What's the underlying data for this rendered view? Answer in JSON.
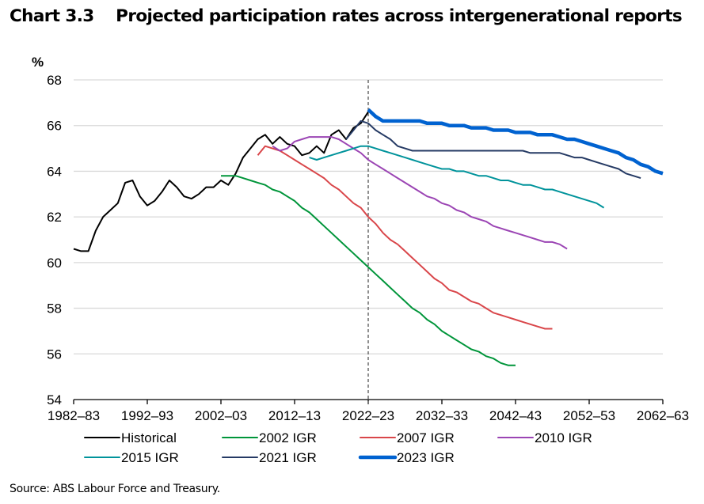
{
  "title": "Chart 3.3    Projected participation rates across intergenerational reports",
  "source": "Source: ABS Labour Force and Treasury.",
  "chart_data": {
    "type": "line",
    "title": "Projected participation rates across intergenerational reports",
    "ylabel": "%",
    "xlabel": "",
    "ylim": [
      54,
      68
    ],
    "yticks": [
      54,
      56,
      58,
      60,
      62,
      64,
      66,
      68
    ],
    "x_start_year": 1982,
    "x_end_year": 2062,
    "xtick_labels": [
      "1982–83",
      "1992–93",
      "2002–03",
      "2012–13",
      "2022–23",
      "2032–33",
      "2042–43",
      "2052–53",
      "2062–63"
    ],
    "xtick_years": [
      1982,
      1992,
      2002,
      2012,
      2022,
      2032,
      2042,
      2052,
      2062
    ],
    "grid": "horizontal",
    "vertical_marker": {
      "year": 2022,
      "style": "dashed"
    },
    "legend_position": "bottom",
    "series": [
      {
        "name": "Historical",
        "color": "#000000",
        "x": [
          1982,
          1983,
          1984,
          1985,
          1986,
          1987,
          1988,
          1989,
          1990,
          1991,
          1992,
          1993,
          1994,
          1995,
          1996,
          1997,
          1998,
          1999,
          2000,
          2001,
          2002,
          2003,
          2004,
          2005,
          2006,
          2007,
          2008,
          2009,
          2010,
          2011,
          2012,
          2013,
          2014,
          2015,
          2016,
          2017,
          2018,
          2019,
          2020,
          2021,
          2022
        ],
        "values": [
          60.6,
          60.5,
          60.5,
          61.4,
          62.0,
          62.3,
          62.6,
          63.5,
          63.6,
          62.9,
          62.5,
          62.7,
          63.1,
          63.6,
          63.3,
          62.9,
          62.8,
          63.0,
          63.3,
          63.3,
          63.6,
          63.4,
          63.9,
          64.6,
          65.0,
          65.4,
          65.6,
          65.2,
          65.5,
          65.2,
          65.1,
          64.7,
          64.8,
          65.1,
          64.8,
          65.6,
          65.8,
          65.4,
          65.9,
          66.1,
          66.6
        ]
      },
      {
        "name": "2002 IGR",
        "color": "#00953A",
        "x": [
          2002,
          2003,
          2004,
          2005,
          2006,
          2007,
          2008,
          2009,
          2010,
          2011,
          2012,
          2013,
          2014,
          2015,
          2016,
          2017,
          2018,
          2019,
          2020,
          2021,
          2022,
          2023,
          2024,
          2025,
          2026,
          2027,
          2028,
          2029,
          2030,
          2031,
          2032,
          2033,
          2034,
          2035,
          2036,
          2037,
          2038,
          2039,
          2040,
          2041,
          2042
        ],
        "values": [
          63.8,
          63.8,
          63.8,
          63.7,
          63.6,
          63.5,
          63.4,
          63.2,
          63.1,
          62.9,
          62.7,
          62.4,
          62.2,
          61.9,
          61.6,
          61.3,
          61.0,
          60.7,
          60.4,
          60.1,
          59.8,
          59.5,
          59.2,
          58.9,
          58.6,
          58.3,
          58.0,
          57.8,
          57.5,
          57.3,
          57.0,
          56.8,
          56.6,
          56.4,
          56.2,
          56.1,
          55.9,
          55.8,
          55.6,
          55.5,
          55.5
        ]
      },
      {
        "name": "2007 IGR",
        "color": "#D9464A",
        "x": [
          2007,
          2008,
          2009,
          2010,
          2011,
          2012,
          2013,
          2014,
          2015,
          2016,
          2017,
          2018,
          2019,
          2020,
          2021,
          2022,
          2023,
          2024,
          2025,
          2026,
          2027,
          2028,
          2029,
          2030,
          2031,
          2032,
          2033,
          2034,
          2035,
          2036,
          2037,
          2038,
          2039,
          2040,
          2041,
          2042,
          2043,
          2044,
          2045,
          2046,
          2047
        ],
        "values": [
          64.7,
          65.1,
          65.0,
          64.9,
          64.7,
          64.5,
          64.3,
          64.1,
          63.9,
          63.7,
          63.4,
          63.2,
          62.9,
          62.6,
          62.4,
          62.0,
          61.7,
          61.3,
          61.0,
          60.8,
          60.5,
          60.2,
          59.9,
          59.6,
          59.3,
          59.1,
          58.8,
          58.7,
          58.5,
          58.3,
          58.2,
          58.0,
          57.8,
          57.7,
          57.6,
          57.5,
          57.4,
          57.3,
          57.2,
          57.1,
          57.1
        ]
      },
      {
        "name": "2010 IGR",
        "color": "#9B45B4",
        "x": [
          2009,
          2010,
          2011,
          2012,
          2013,
          2014,
          2015,
          2016,
          2017,
          2018,
          2019,
          2020,
          2021,
          2022,
          2023,
          2024,
          2025,
          2026,
          2027,
          2028,
          2029,
          2030,
          2031,
          2032,
          2033,
          2034,
          2035,
          2036,
          2037,
          2038,
          2039,
          2040,
          2041,
          2042,
          2043,
          2044,
          2045,
          2046,
          2047,
          2048,
          2049
        ],
        "values": [
          65.1,
          64.9,
          65.0,
          65.3,
          65.4,
          65.5,
          65.5,
          65.5,
          65.5,
          65.4,
          65.2,
          65.0,
          64.8,
          64.5,
          64.3,
          64.1,
          63.9,
          63.7,
          63.5,
          63.3,
          63.1,
          62.9,
          62.8,
          62.6,
          62.5,
          62.3,
          62.2,
          62.0,
          61.9,
          61.8,
          61.6,
          61.5,
          61.4,
          61.3,
          61.2,
          61.1,
          61.0,
          60.9,
          60.9,
          60.8,
          60.6
        ]
      },
      {
        "name": "2015 IGR",
        "color": "#00939B",
        "x": [
          2014,
          2015,
          2016,
          2017,
          2018,
          2019,
          2020,
          2021,
          2022,
          2023,
          2024,
          2025,
          2026,
          2027,
          2028,
          2029,
          2030,
          2031,
          2032,
          2033,
          2034,
          2035,
          2036,
          2037,
          2038,
          2039,
          2040,
          2041,
          2042,
          2043,
          2044,
          2045,
          2046,
          2047,
          2048,
          2049,
          2050,
          2051,
          2052,
          2053,
          2054
        ],
        "values": [
          64.6,
          64.5,
          64.6,
          64.7,
          64.8,
          64.9,
          65.0,
          65.1,
          65.1,
          65.0,
          64.9,
          64.8,
          64.7,
          64.6,
          64.5,
          64.4,
          64.3,
          64.2,
          64.1,
          64.1,
          64.0,
          64.0,
          63.9,
          63.8,
          63.8,
          63.7,
          63.6,
          63.6,
          63.5,
          63.4,
          63.4,
          63.3,
          63.2,
          63.2,
          63.1,
          63.0,
          62.9,
          62.8,
          62.7,
          62.6,
          62.4
        ]
      },
      {
        "name": "2021 IGR",
        "color": "#253A64",
        "x": [
          2019,
          2020,
          2021,
          2022,
          2023,
          2024,
          2025,
          2026,
          2027,
          2028,
          2029,
          2030,
          2031,
          2032,
          2033,
          2034,
          2035,
          2036,
          2037,
          2038,
          2039,
          2040,
          2041,
          2042,
          2043,
          2044,
          2045,
          2046,
          2047,
          2048,
          2049,
          2050,
          2051,
          2052,
          2053,
          2054,
          2055,
          2056,
          2057,
          2058,
          2059
        ],
        "values": [
          65.4,
          65.8,
          66.2,
          66.1,
          65.8,
          65.6,
          65.4,
          65.1,
          65.0,
          64.9,
          64.9,
          64.9,
          64.9,
          64.9,
          64.9,
          64.9,
          64.9,
          64.9,
          64.9,
          64.9,
          64.9,
          64.9,
          64.9,
          64.9,
          64.9,
          64.8,
          64.8,
          64.8,
          64.8,
          64.8,
          64.7,
          64.6,
          64.6,
          64.5,
          64.4,
          64.3,
          64.2,
          64.1,
          63.9,
          63.8,
          63.7
        ]
      },
      {
        "name": "2023 IGR",
        "color": "#0062D0",
        "x": [
          2022,
          2023,
          2024,
          2025,
          2026,
          2027,
          2028,
          2029,
          2030,
          2031,
          2032,
          2033,
          2034,
          2035,
          2036,
          2037,
          2038,
          2039,
          2040,
          2041,
          2042,
          2043,
          2044,
          2045,
          2046,
          2047,
          2048,
          2049,
          2050,
          2051,
          2052,
          2053,
          2054,
          2055,
          2056,
          2057,
          2058,
          2059,
          2060,
          2061,
          2062
        ],
        "values": [
          66.7,
          66.4,
          66.2,
          66.2,
          66.2,
          66.2,
          66.2,
          66.2,
          66.1,
          66.1,
          66.1,
          66.0,
          66.0,
          66.0,
          65.9,
          65.9,
          65.9,
          65.8,
          65.8,
          65.8,
          65.7,
          65.7,
          65.7,
          65.6,
          65.6,
          65.6,
          65.5,
          65.4,
          65.4,
          65.3,
          65.2,
          65.1,
          65.0,
          64.9,
          64.8,
          64.6,
          64.5,
          64.3,
          64.2,
          64.0,
          63.9
        ]
      }
    ]
  }
}
